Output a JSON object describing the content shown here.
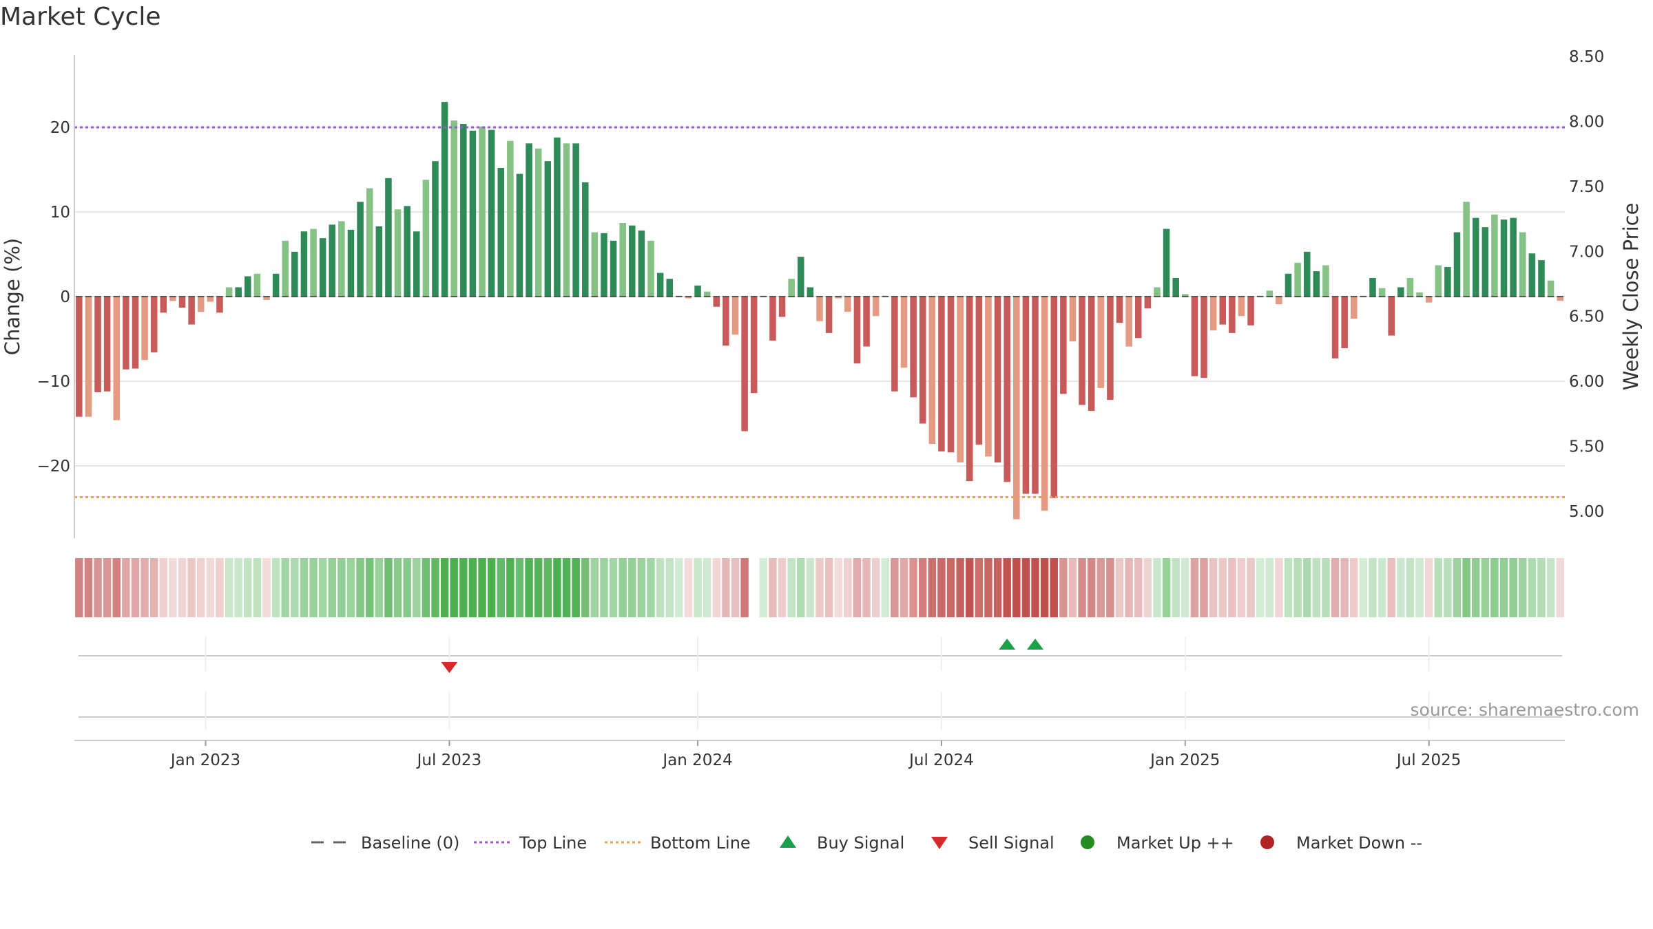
{
  "title": "Market Cycle",
  "source": "source: sharemaestro.com",
  "colors": {
    "up_strong": "#2e8b57",
    "up_weak": "#86c286",
    "down_strong": "#c85a5a",
    "down_weak": "#e59a82",
    "top_line": "#9b59d0",
    "bottom_line": "#f0a050",
    "buy": "#1aa04a",
    "sell": "#d62a2a",
    "market_up": "#228b22",
    "market_down": "#b22222"
  },
  "chart_data": {
    "type": "bar",
    "title": "Market Cycle",
    "ylabel_left": "Change (%)",
    "ylabel_right": "Weekly Close Price",
    "ylim_left": [
      -28,
      29
    ],
    "ylim_right": [
      4.9,
      8.5
    ],
    "yticks_left": [
      20,
      10,
      0,
      -10,
      -20
    ],
    "yticks_left_labels": [
      "20",
      "10",
      "0",
      "−10",
      "−20"
    ],
    "yticks_right": [
      8.5,
      8.0,
      7.5,
      7.0,
      6.5,
      6.0,
      5.5,
      5.0
    ],
    "yticks_right_labels": [
      "8.50",
      "8.00",
      "7.50",
      "7.00",
      "6.50",
      "6.00",
      "5.50",
      "5.00"
    ],
    "xticks": [
      "Jan 2023",
      "Jul 2023",
      "Jan 2024",
      "Jul 2024",
      "Jan 2025",
      "Jul 2025"
    ],
    "xtick_weeks": [
      14,
      40,
      66.5,
      92.5,
      118.5,
      144.5
    ],
    "top_line": 20,
    "bottom_line": -23.7,
    "values": [
      -14.2,
      -14.2,
      -11.3,
      -11.2,
      -14.6,
      -8.6,
      -8.5,
      -7.5,
      -6.6,
      -1.9,
      -0.5,
      -1.3,
      -3.3,
      -1.8,
      -0.6,
      -1.9,
      1.1,
      1.1,
      2.4,
      2.7,
      -0.4,
      2.7,
      6.6,
      5.3,
      7.7,
      8.0,
      6.9,
      8.5,
      8.9,
      7.9,
      11.2,
      12.8,
      8.3,
      14.0,
      10.3,
      10.7,
      7.7,
      13.8,
      16.0,
      23.0,
      20.8,
      20.4,
      19.6,
      20.1,
      19.7,
      15.2,
      18.4,
      14.5,
      18.1,
      17.5,
      16.0,
      18.8,
      18.1,
      18.1,
      13.5,
      7.6,
      7.5,
      6.6,
      8.7,
      8.4,
      7.8,
      6.6,
      2.8,
      2.1,
      0.1,
      -0.2,
      1.3,
      0.6,
      -1.2,
      -5.8,
      -4.5,
      -15.9,
      -11.4,
      0.1,
      -5.2,
      -2.4,
      2.1,
      4.7,
      1.1,
      -2.9,
      -4.3,
      -0.2,
      -1.8,
      -7.9,
      -5.9,
      -2.3,
      0.1,
      -11.2,
      -8.4,
      -11.9,
      -15.0,
      -17.4,
      -18.3,
      -18.4,
      -19.6,
      -21.8,
      -17.5,
      -18.9,
      -19.6,
      -21.9,
      -26.3,
      -23.3,
      -23.3,
      -25.3,
      -23.8,
      -11.5,
      -5.3,
      -12.8,
      -13.5,
      -10.8,
      -12.2,
      -3.1,
      -5.9,
      -4.9,
      -1.4,
      1.1,
      8.0,
      2.2,
      0.3,
      -9.4,
      -9.6,
      -4.0,
      -3.3,
      -4.3,
      -2.3,
      -3.4,
      0.1,
      0.7,
      -0.9,
      2.7,
      4.0,
      5.3,
      3.0,
      3.7,
      -7.3,
      -6.1,
      -2.6,
      0.1,
      2.2,
      1.0,
      -4.6,
      1.1,
      2.2,
      0.5,
      -0.7,
      3.7,
      3.5,
      7.6,
      11.2,
      9.3,
      8.2,
      9.7,
      9.1,
      9.3,
      7.6,
      5.1,
      4.3,
      1.9,
      -0.5
    ],
    "heat_strip_gap_index": 72,
    "buy_signals": [
      99,
      102
    ],
    "sell_signals": [
      39.5
    ],
    "legend": [
      "Baseline (0)",
      "Top Line",
      "Bottom Line",
      "Buy Signal",
      "Sell Signal",
      "Market Up ++",
      "Market Down --"
    ],
    "legend_placement": "bottom-center",
    "grid": true
  }
}
